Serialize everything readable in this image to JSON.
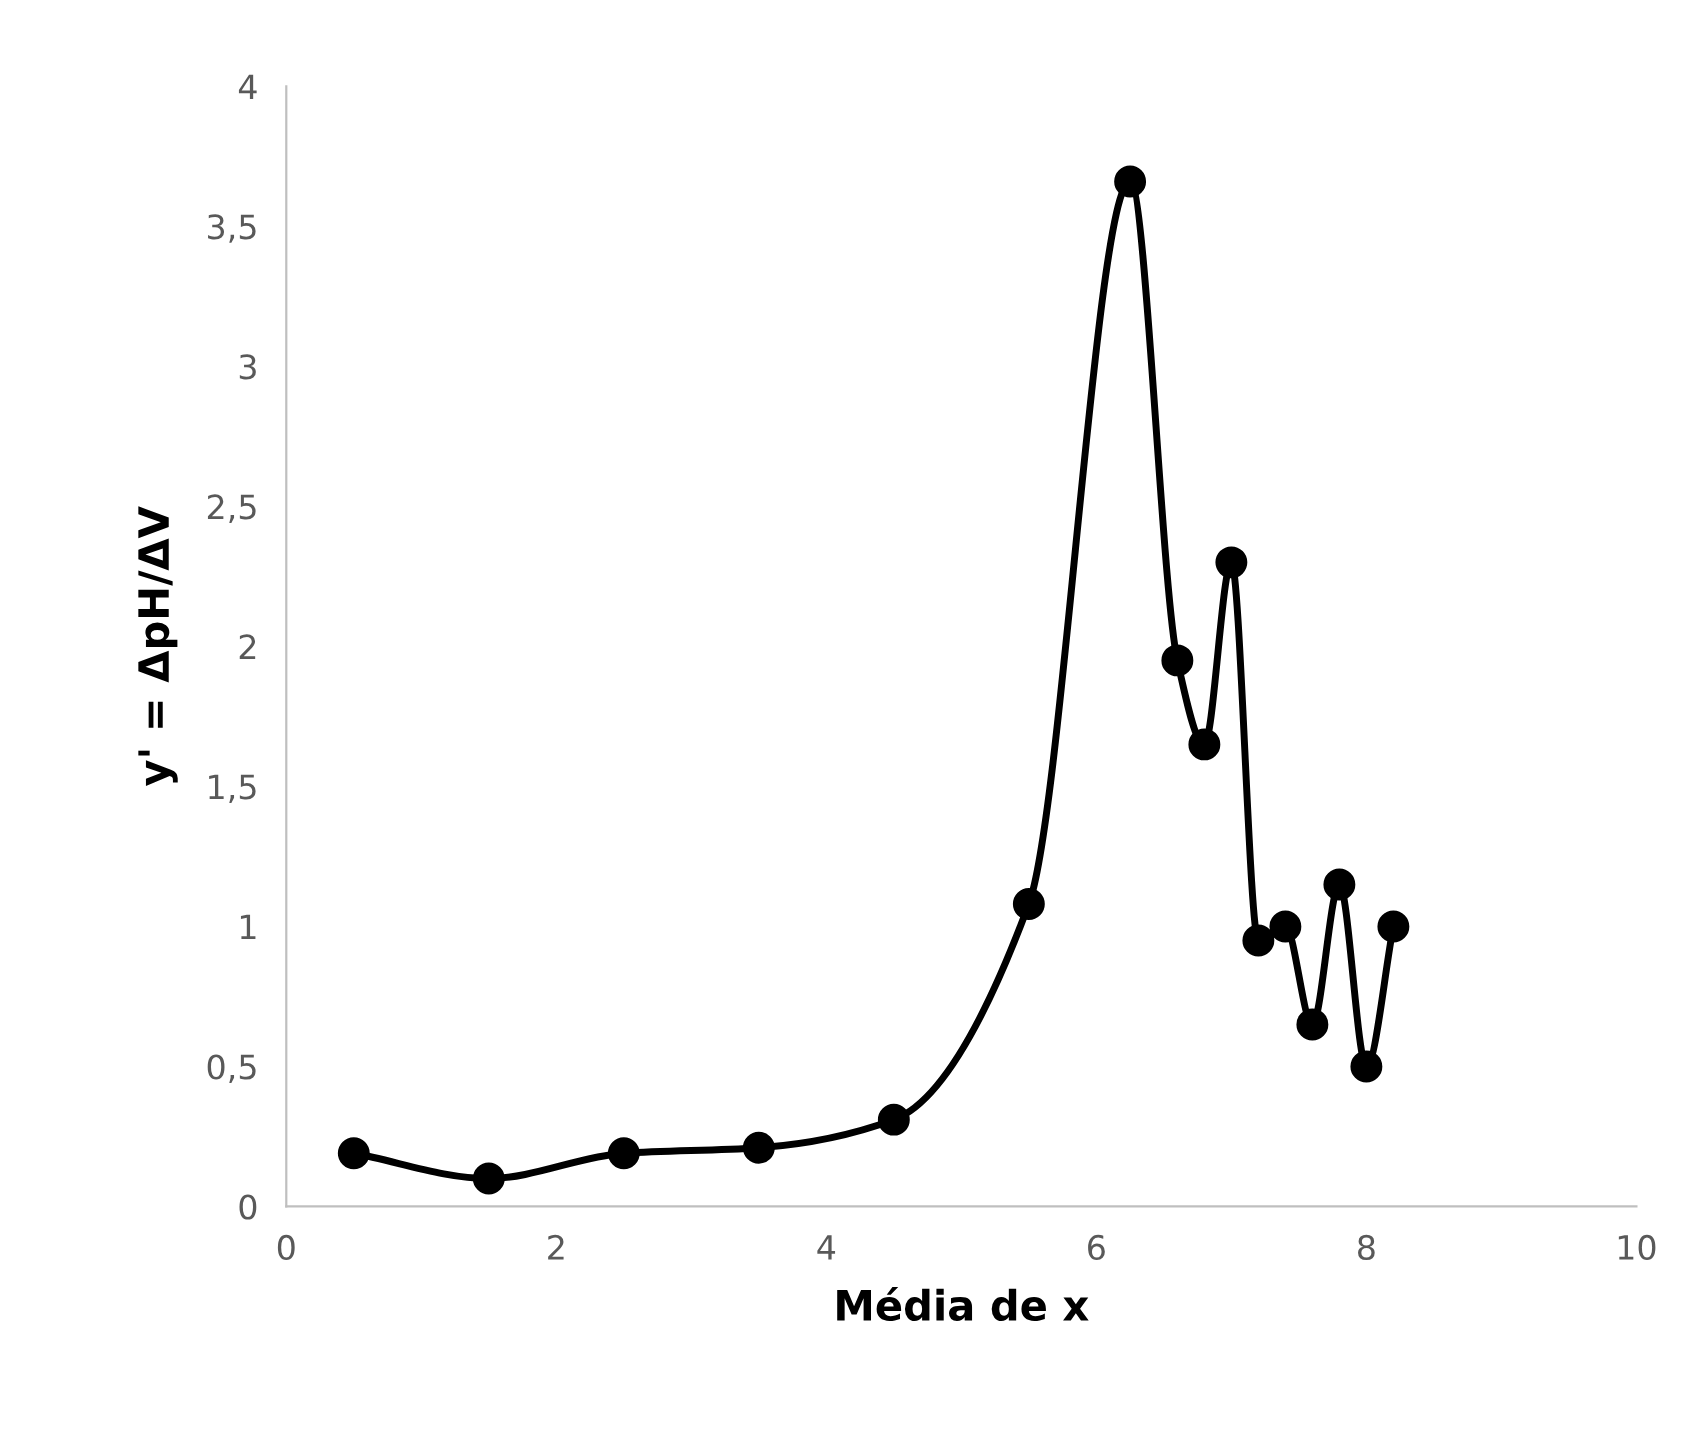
{
  "chart_data": {
    "type": "line",
    "xlabel": "Média de x",
    "ylabel": "y' = ΔpH/ΔV",
    "x": [
      0.5,
      1.5,
      2.5,
      3.5,
      4.5,
      5.5,
      6.25,
      6.6,
      6.8,
      7.0,
      7.2,
      7.4,
      7.6,
      7.8,
      8.0,
      8.2
    ],
    "series": [
      {
        "color": "#000000",
        "values": [
          0.19,
          0.1,
          0.19,
          0.21,
          0.31,
          1.08,
          3.66,
          1.95,
          1.65,
          2.3,
          0.95,
          1.0,
          0.65,
          1.15,
          0.5,
          1.0
        ]
      }
    ],
    "xlim": [
      0,
      10
    ],
    "xticks": [
      0,
      2,
      4,
      6,
      8,
      10
    ],
    "ylim": [
      0,
      4
    ],
    "yticks": [
      0,
      {
        "value": 0.5,
        "label": "0,5"
      },
      1,
      {
        "value": 1.5,
        "label": "1,5"
      },
      2,
      {
        "value": 2.5,
        "label": "2,5"
      },
      3,
      {
        "value": 3.5,
        "label": "3,5"
      },
      4
    ],
    "grid": false,
    "marker": "circle",
    "line_style": "solid"
  }
}
